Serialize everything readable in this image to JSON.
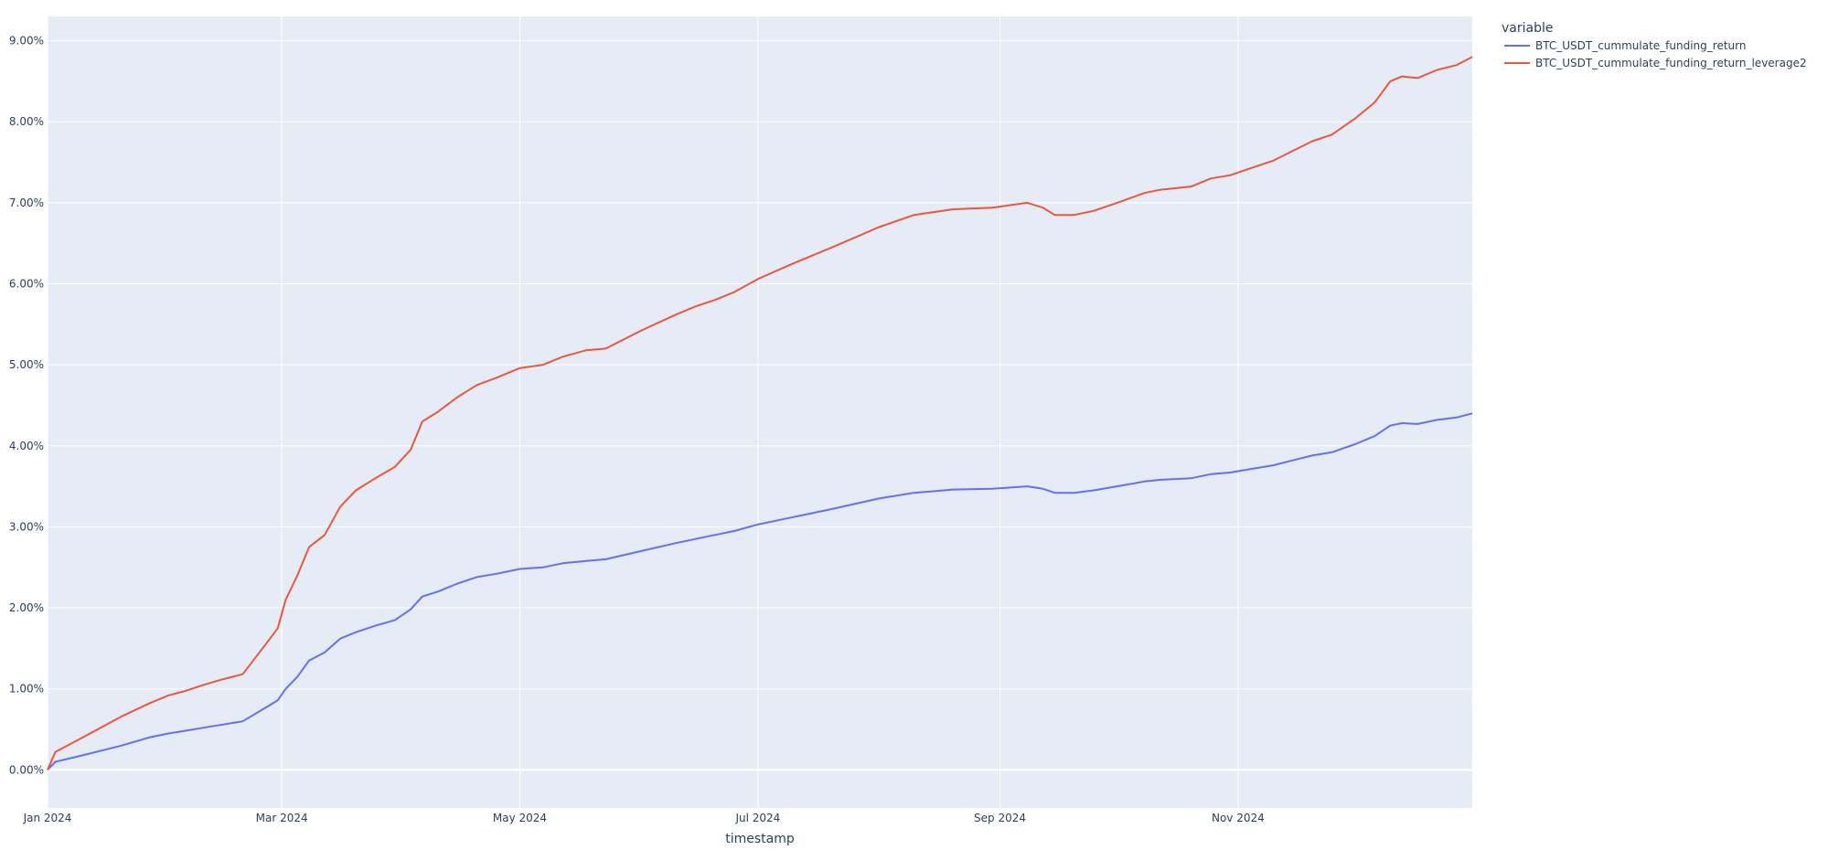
{
  "chart_data": {
    "type": "line",
    "xlabel": "timestamp",
    "ylabel": "",
    "x_tick_labels": [
      "Jan 2024",
      "Mar 2024",
      "May 2024",
      "Jul 2024",
      "Sep 2024",
      "Nov 2024"
    ],
    "x_tick_dates": [
      "2024-01-01",
      "2024-03-01",
      "2024-05-01",
      "2024-07-01",
      "2024-09-01",
      "2024-11-01"
    ],
    "xlim": [
      "2024-01-01",
      "2024-12-31"
    ],
    "y_tick_labels": [
      "0.00%",
      "1.00%",
      "2.00%",
      "3.00%",
      "4.00%",
      "5.00%",
      "6.00%",
      "7.00%",
      "8.00%",
      "9.00%"
    ],
    "y_tick_values": [
      0,
      1,
      2,
      3,
      4,
      5,
      6,
      7,
      8,
      9
    ],
    "ylim": [
      -0.47,
      9.3
    ],
    "grid": true,
    "legend": {
      "title": "variable",
      "position": "top-right"
    },
    "background_color": "#e5ecf6",
    "series": [
      {
        "name": "BTC_USDT_cummulate_funding_return",
        "color": "#636efa",
        "points": [
          [
            "2024-01-01",
            0.0
          ],
          [
            "2024-01-03",
            0.1
          ],
          [
            "2024-01-10",
            0.18
          ],
          [
            "2024-01-20",
            0.3
          ],
          [
            "2024-01-27",
            0.4
          ],
          [
            "2024-02-01",
            0.45
          ],
          [
            "2024-02-05",
            0.48
          ],
          [
            "2024-02-10",
            0.52
          ],
          [
            "2024-02-15",
            0.56
          ],
          [
            "2024-02-20",
            0.6
          ],
          [
            "2024-02-27",
            0.8
          ],
          [
            "2024-02-29",
            0.86
          ],
          [
            "2024-03-02",
            1.0
          ],
          [
            "2024-03-05",
            1.15
          ],
          [
            "2024-03-08",
            1.35
          ],
          [
            "2024-03-12",
            1.45
          ],
          [
            "2024-03-16",
            1.62
          ],
          [
            "2024-03-20",
            1.7
          ],
          [
            "2024-03-25",
            1.78
          ],
          [
            "2024-03-30",
            1.85
          ],
          [
            "2024-04-03",
            1.98
          ],
          [
            "2024-04-06",
            2.14
          ],
          [
            "2024-04-10",
            2.2
          ],
          [
            "2024-04-15",
            2.3
          ],
          [
            "2024-04-20",
            2.38
          ],
          [
            "2024-04-25",
            2.42
          ],
          [
            "2024-05-01",
            2.48
          ],
          [
            "2024-05-07",
            2.5
          ],
          [
            "2024-05-12",
            2.55
          ],
          [
            "2024-05-18",
            2.58
          ],
          [
            "2024-05-23",
            2.6
          ],
          [
            "2024-06-01",
            2.7
          ],
          [
            "2024-06-10",
            2.8
          ],
          [
            "2024-06-15",
            2.85
          ],
          [
            "2024-06-20",
            2.9
          ],
          [
            "2024-06-25",
            2.95
          ],
          [
            "2024-07-01",
            3.03
          ],
          [
            "2024-07-10",
            3.12
          ],
          [
            "2024-07-20",
            3.22
          ],
          [
            "2024-08-01",
            3.35
          ],
          [
            "2024-08-10",
            3.42
          ],
          [
            "2024-08-20",
            3.46
          ],
          [
            "2024-08-30",
            3.47
          ],
          [
            "2024-09-05",
            3.49
          ],
          [
            "2024-09-08",
            3.5
          ],
          [
            "2024-09-12",
            3.47
          ],
          [
            "2024-09-15",
            3.42
          ],
          [
            "2024-09-20",
            3.42
          ],
          [
            "2024-09-25",
            3.45
          ],
          [
            "2024-10-01",
            3.5
          ],
          [
            "2024-10-08",
            3.56
          ],
          [
            "2024-10-12",
            3.58
          ],
          [
            "2024-10-20",
            3.6
          ],
          [
            "2024-10-25",
            3.65
          ],
          [
            "2024-10-30",
            3.67
          ],
          [
            "2024-11-05",
            3.72
          ],
          [
            "2024-11-10",
            3.76
          ],
          [
            "2024-11-15",
            3.82
          ],
          [
            "2024-11-20",
            3.88
          ],
          [
            "2024-11-25",
            3.92
          ],
          [
            "2024-12-01",
            4.02
          ],
          [
            "2024-12-06",
            4.12
          ],
          [
            "2024-12-10",
            4.25
          ],
          [
            "2024-12-13",
            4.28
          ],
          [
            "2024-12-17",
            4.27
          ],
          [
            "2024-12-22",
            4.32
          ],
          [
            "2024-12-27",
            4.35
          ],
          [
            "2024-12-31",
            4.4
          ]
        ]
      },
      {
        "name": "BTC_USDT_cummulate_funding_return_leverage2",
        "color": "#ef553b",
        "points": [
          [
            "2024-01-01",
            0.0
          ],
          [
            "2024-01-03",
            0.22
          ],
          [
            "2024-01-10",
            0.4
          ],
          [
            "2024-01-20",
            0.66
          ],
          [
            "2024-01-27",
            0.82
          ],
          [
            "2024-02-01",
            0.92
          ],
          [
            "2024-02-05",
            0.97
          ],
          [
            "2024-02-10",
            1.05
          ],
          [
            "2024-02-15",
            1.12
          ],
          [
            "2024-02-20",
            1.18
          ],
          [
            "2024-02-27",
            1.62
          ],
          [
            "2024-02-29",
            1.75
          ],
          [
            "2024-03-02",
            2.1
          ],
          [
            "2024-03-05",
            2.4
          ],
          [
            "2024-03-08",
            2.75
          ],
          [
            "2024-03-12",
            2.9
          ],
          [
            "2024-03-16",
            3.25
          ],
          [
            "2024-03-20",
            3.45
          ],
          [
            "2024-03-25",
            3.6
          ],
          [
            "2024-03-30",
            3.74
          ],
          [
            "2024-04-03",
            3.95
          ],
          [
            "2024-04-06",
            4.3
          ],
          [
            "2024-04-10",
            4.42
          ],
          [
            "2024-04-15",
            4.6
          ],
          [
            "2024-04-20",
            4.75
          ],
          [
            "2024-04-25",
            4.84
          ],
          [
            "2024-05-01",
            4.96
          ],
          [
            "2024-05-07",
            5.0
          ],
          [
            "2024-05-12",
            5.1
          ],
          [
            "2024-05-18",
            5.18
          ],
          [
            "2024-05-23",
            5.2
          ],
          [
            "2024-06-01",
            5.42
          ],
          [
            "2024-06-10",
            5.62
          ],
          [
            "2024-06-15",
            5.72
          ],
          [
            "2024-06-20",
            5.8
          ],
          [
            "2024-06-25",
            5.9
          ],
          [
            "2024-07-01",
            6.06
          ],
          [
            "2024-07-10",
            6.25
          ],
          [
            "2024-07-20",
            6.45
          ],
          [
            "2024-08-01",
            6.7
          ],
          [
            "2024-08-10",
            6.85
          ],
          [
            "2024-08-20",
            6.92
          ],
          [
            "2024-08-30",
            6.94
          ],
          [
            "2024-09-05",
            6.98
          ],
          [
            "2024-09-08",
            7.0
          ],
          [
            "2024-09-12",
            6.94
          ],
          [
            "2024-09-15",
            6.85
          ],
          [
            "2024-09-20",
            6.85
          ],
          [
            "2024-09-25",
            6.9
          ],
          [
            "2024-10-01",
            7.0
          ],
          [
            "2024-10-08",
            7.12
          ],
          [
            "2024-10-12",
            7.16
          ],
          [
            "2024-10-20",
            7.2
          ],
          [
            "2024-10-25",
            7.3
          ],
          [
            "2024-10-30",
            7.34
          ],
          [
            "2024-11-05",
            7.44
          ],
          [
            "2024-11-10",
            7.52
          ],
          [
            "2024-11-15",
            7.64
          ],
          [
            "2024-11-20",
            7.76
          ],
          [
            "2024-11-25",
            7.84
          ],
          [
            "2024-12-01",
            8.04
          ],
          [
            "2024-12-06",
            8.24
          ],
          [
            "2024-12-10",
            8.5
          ],
          [
            "2024-12-13",
            8.56
          ],
          [
            "2024-12-17",
            8.54
          ],
          [
            "2024-12-22",
            8.64
          ],
          [
            "2024-12-27",
            8.7
          ],
          [
            "2024-12-31",
            8.8
          ]
        ]
      }
    ]
  }
}
